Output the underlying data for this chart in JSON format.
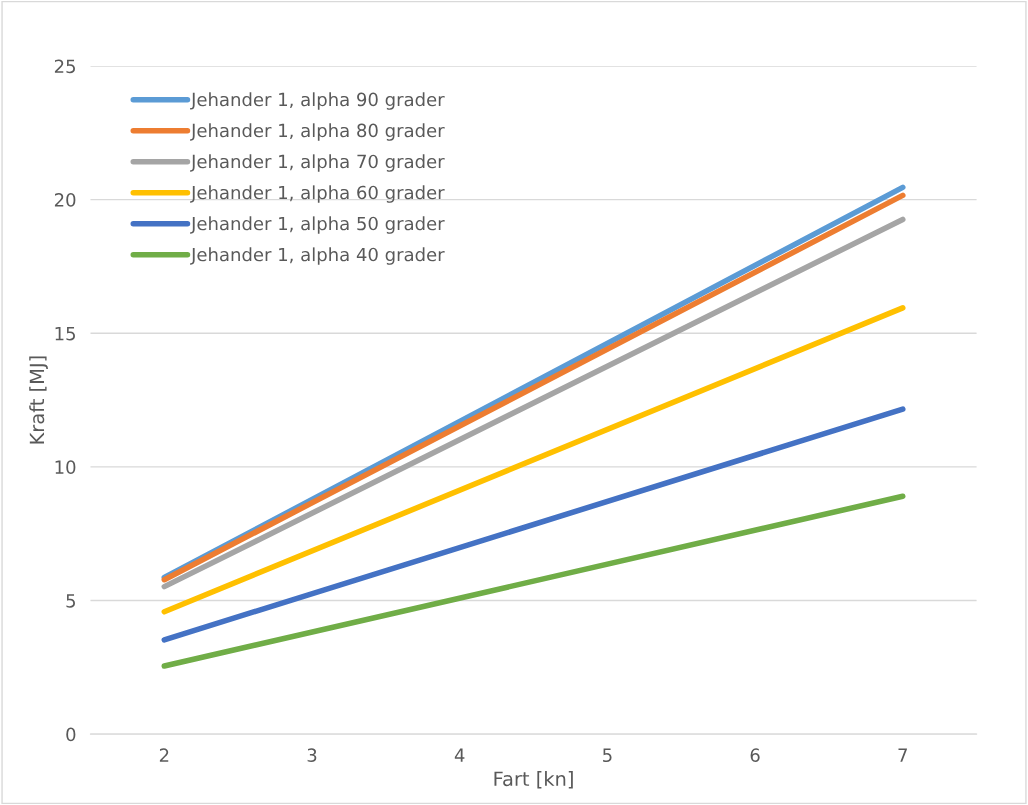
{
  "chart_data": {
    "type": "line",
    "xlabel": "Fart [kn]",
    "ylabel": "Kraft [MJ]",
    "x": [
      2,
      7
    ],
    "xlim": [
      1.5,
      7.5
    ],
    "xticks": [
      2,
      3,
      4,
      5,
      6,
      7
    ],
    "ylim": [
      0,
      25
    ],
    "yticks": [
      0,
      5,
      10,
      15,
      20,
      25
    ],
    "grid": "y",
    "legend": "top left",
    "line_style": "solid",
    "marker": "none",
    "series": [
      {
        "name": "Jehander 1, alpha 90 grader",
        "color": "#5b9bd5",
        "values": [
          5.86,
          20.46
        ]
      },
      {
        "name": "Jehander 1, alpha 80 grader",
        "color": "#ed7d31",
        "values": [
          5.78,
          20.16
        ]
      },
      {
        "name": "Jehander 1, alpha 70 grader",
        "color": "#a5a5a5",
        "values": [
          5.52,
          19.26
        ]
      },
      {
        "name": "Jehander 1, alpha 60 grader",
        "color": "#ffc000",
        "values": [
          4.58,
          15.95
        ]
      },
      {
        "name": "Jehander 1, alpha 50 grader",
        "color": "#4472c4",
        "values": [
          3.53,
          12.16
        ]
      },
      {
        "name": "Jehander 1, alpha 40 grader",
        "color": "#70ad47",
        "values": [
          2.55,
          8.9
        ]
      }
    ]
  }
}
